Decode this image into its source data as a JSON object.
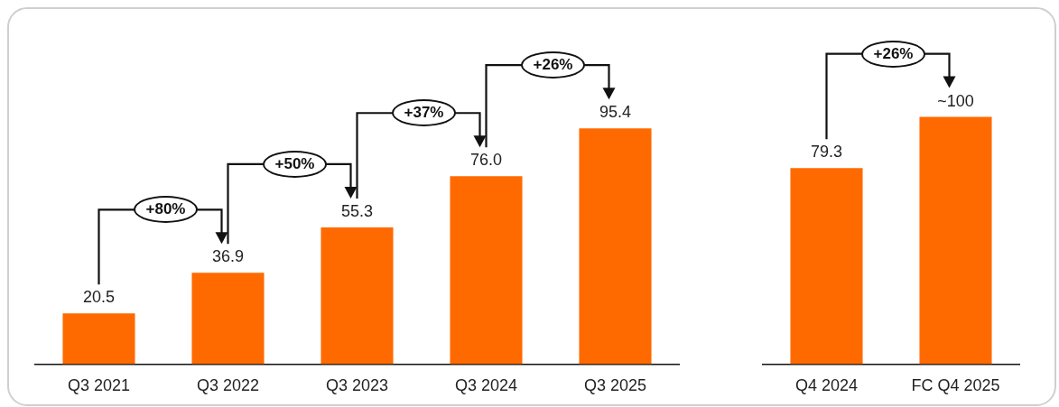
{
  "chart_data": [
    {
      "type": "bar",
      "categories": [
        "Q3 2021",
        "Q3 2022",
        "Q3 2023",
        "Q3 2024",
        "Q3 2025"
      ],
      "values": [
        20.5,
        36.9,
        55.3,
        76.0,
        95.4
      ],
      "color": "#ff6a00",
      "value_labels": [
        "20.5",
        "36.9",
        "55.3",
        "76.0",
        "95.4"
      ],
      "annotations": [
        "+80%",
        "+50%",
        "+37%",
        "+26%"
      ]
    },
    {
      "type": "bar",
      "categories": [
        "Q4 2024",
        "FC Q4 2025"
      ],
      "values": [
        79.3,
        100
      ],
      "color": "#ff6a00",
      "value_labels": [
        "79.3",
        "~100"
      ],
      "annotations": [
        "+26%"
      ]
    }
  ]
}
